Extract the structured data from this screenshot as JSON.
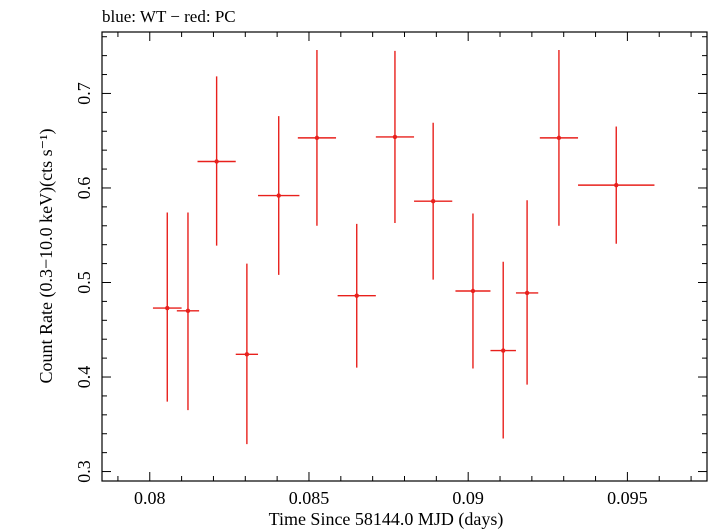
{
  "chart_data": {
    "type": "scatter",
    "title": "blue: WT − red: PC",
    "xlabel": "Time Since 58144.0 MJD (days)",
    "ylabel": "Count Rate (0.3−10.0 keV)(cts s⁻¹)",
    "xlim": [
      0.0785,
      0.0975
    ],
    "ylim": [
      0.29,
      0.765
    ],
    "x_ticks": [
      0.08,
      0.085,
      0.09,
      0.095
    ],
    "x_tick_labels": [
      "0.08",
      "0.085",
      "0.09",
      "0.095"
    ],
    "y_ticks": [
      0.3,
      0.4,
      0.5,
      0.6,
      0.7
    ],
    "y_tick_labels": [
      "0.3",
      "0.4",
      "0.5",
      "0.6",
      "0.7"
    ],
    "grid": false,
    "series": [
      {
        "color": "#e8201c",
        "points": [
          {
            "x": 0.08055,
            "y": 0.473,
            "xerr": 0.00045,
            "ylo": 0.374,
            "yhi": 0.574
          },
          {
            "x": 0.0812,
            "y": 0.47,
            "xerr": 0.00035,
            "ylo": 0.365,
            "yhi": 0.574
          },
          {
            "x": 0.0821,
            "y": 0.628,
            "xerr": 0.0006,
            "ylo": 0.539,
            "yhi": 0.718
          },
          {
            "x": 0.08305,
            "y": 0.424,
            "xerr": 0.00035,
            "ylo": 0.329,
            "yhi": 0.52
          },
          {
            "x": 0.08405,
            "y": 0.592,
            "xerr": 0.00065,
            "ylo": 0.508,
            "yhi": 0.676
          },
          {
            "x": 0.08525,
            "y": 0.653,
            "xerr": 0.0006,
            "ylo": 0.56,
            "yhi": 0.746
          },
          {
            "x": 0.0865,
            "y": 0.486,
            "xerr": 0.0006,
            "ylo": 0.41,
            "yhi": 0.562
          },
          {
            "x": 0.0877,
            "y": 0.654,
            "xerr": 0.0006,
            "ylo": 0.563,
            "yhi": 0.745
          },
          {
            "x": 0.0889,
            "y": 0.586,
            "xerr": 0.0006,
            "ylo": 0.503,
            "yhi": 0.669
          },
          {
            "x": 0.09015,
            "y": 0.491,
            "xerr": 0.00055,
            "ylo": 0.409,
            "yhi": 0.573
          },
          {
            "x": 0.0911,
            "y": 0.428,
            "xerr": 0.0004,
            "ylo": 0.335,
            "yhi": 0.522
          },
          {
            "x": 0.09185,
            "y": 0.489,
            "xerr": 0.00035,
            "ylo": 0.392,
            "yhi": 0.587
          },
          {
            "x": 0.09285,
            "y": 0.653,
            "xerr": 0.0006,
            "ylo": 0.56,
            "yhi": 0.746
          },
          {
            "x": 0.09465,
            "y": 0.603,
            "xerr": 0.0012,
            "ylo": 0.541,
            "yhi": 0.665
          }
        ]
      }
    ]
  }
}
